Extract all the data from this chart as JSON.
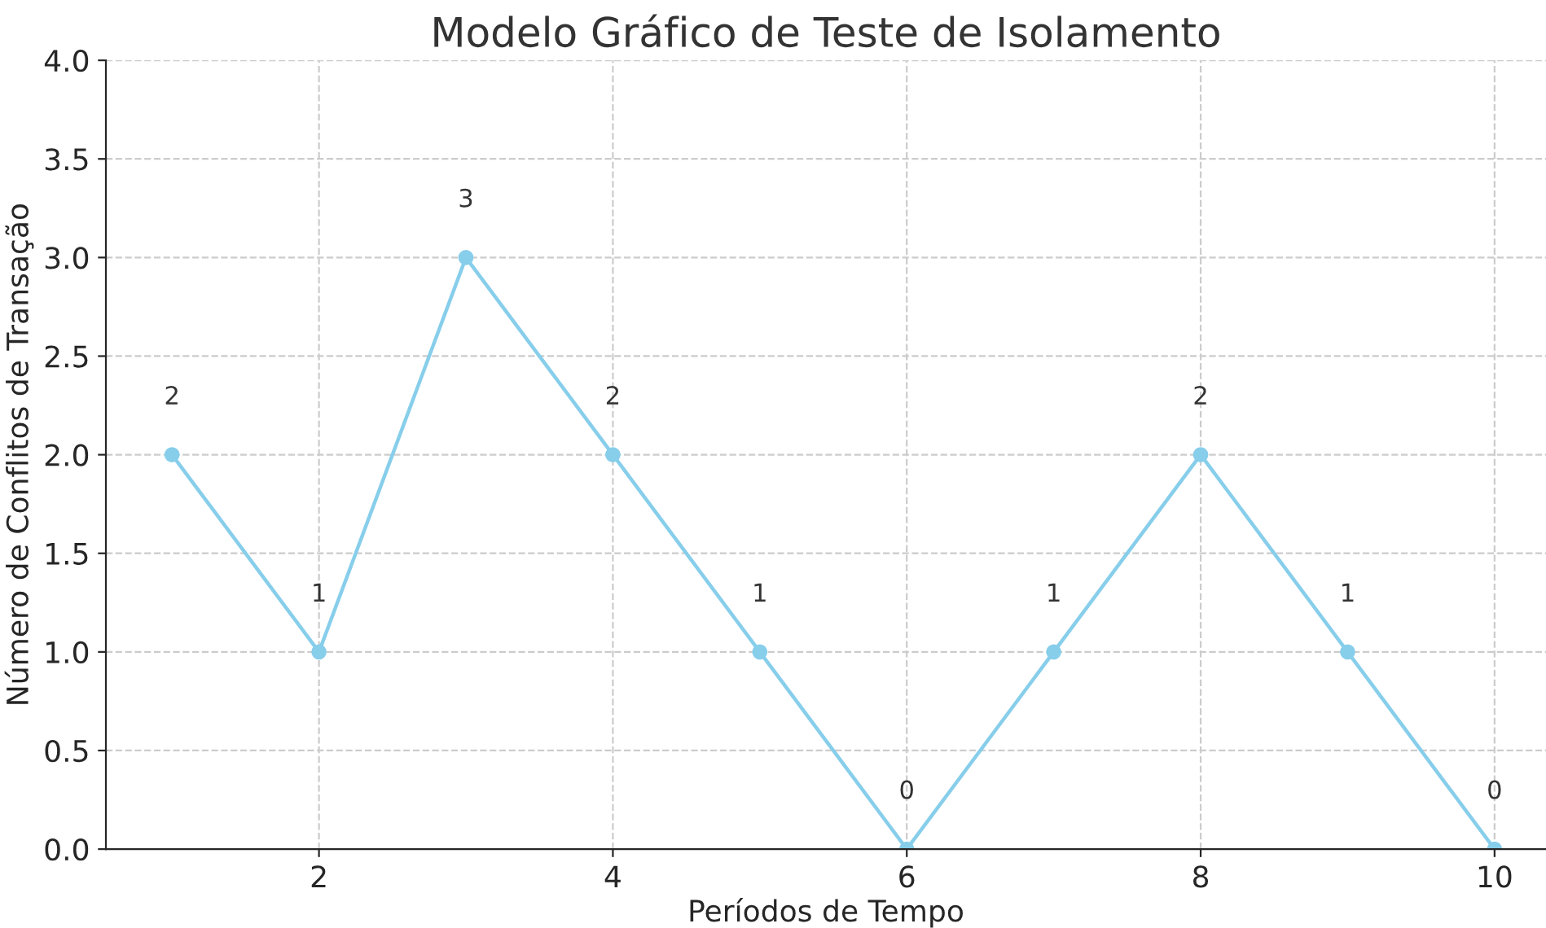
{
  "chart_data": {
    "type": "line",
    "title": "Modelo Gráfico de Teste de Isolamento",
    "xlabel": "Períodos de Tempo",
    "ylabel": "Número de Conflitos de Transação",
    "x": [
      1,
      2,
      3,
      4,
      5,
      6,
      7,
      8,
      9,
      10
    ],
    "series": [
      {
        "color": "#87ceeb",
        "values": [
          2,
          1,
          3,
          2,
          1,
          0,
          1,
          2,
          1,
          0
        ]
      }
    ],
    "xlim": [
      0.55,
      10.35
    ],
    "xticks": [
      2,
      4,
      6,
      8,
      10
    ],
    "ylim": [
      0,
      4
    ],
    "yticks": [
      {
        "value": 0,
        "label": "0.0"
      },
      {
        "value": 0.5,
        "label": "0.5"
      },
      {
        "value": 1,
        "label": "1.0"
      },
      {
        "value": 1.5,
        "label": "1.5"
      },
      {
        "value": 2,
        "label": "2.0"
      },
      {
        "value": 2.5,
        "label": "2.5"
      },
      {
        "value": 3,
        "label": "3.0"
      },
      {
        "value": 3.5,
        "label": "3.5"
      },
      {
        "value": 4,
        "label": "4.0"
      }
    ],
    "grid": true,
    "marker": "circle",
    "line_style": "solid",
    "data_labels": true
  }
}
